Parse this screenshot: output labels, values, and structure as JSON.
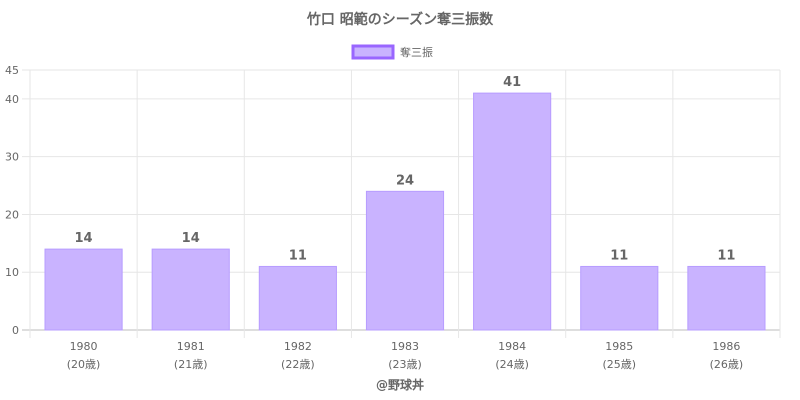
{
  "chart_data": {
    "type": "bar",
    "title": "竹口 昭範のシーズン奪三振数",
    "categories": [
      "1980",
      "1981",
      "1982",
      "1983",
      "1984",
      "1985",
      "1986"
    ],
    "category_sublabels": [
      "(20歳)",
      "(21歳)",
      "(22歳)",
      "(23歳)",
      "(24歳)",
      "(25歳)",
      "(26歳)"
    ],
    "series": [
      {
        "name": "奪三振",
        "values": [
          14,
          14,
          11,
          24,
          41,
          11,
          11
        ]
      }
    ],
    "ylim": [
      0,
      45
    ],
    "yticks": [
      0,
      10,
      20,
      30,
      40,
      45
    ],
    "grid": true,
    "legend": "top-center",
    "data_labels": true,
    "bar_color": "#c9b3ff",
    "bar_border_color": "#b79cff",
    "legend_border_color": "#9966ff"
  },
  "credit": "@野球丼"
}
